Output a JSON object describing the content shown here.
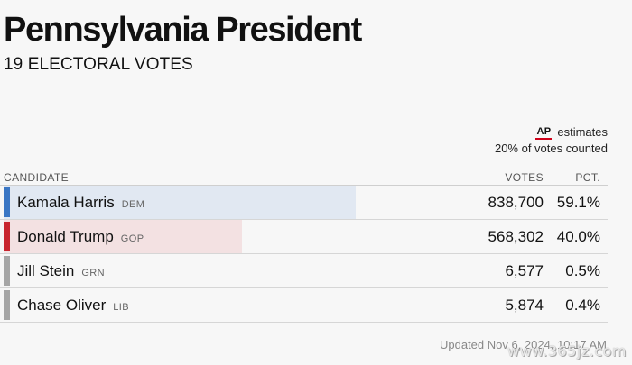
{
  "header": {
    "title": "Pennsylvania President",
    "subtitle": "19 ELECTORAL VOTES"
  },
  "source": {
    "logo": "AP",
    "estimates_label": "estimates",
    "counted_text": "20% of votes counted"
  },
  "table": {
    "col_candidate": "CANDIDATE",
    "col_votes": "VOTES",
    "col_pct": "PCT.",
    "rows": [
      {
        "name": "Kamala Harris",
        "party": "DEM",
        "votes": "838,700",
        "pct": "59.1%",
        "share": 0.591,
        "bar_color": "#3a76c4",
        "fill_color": "#e1e8f2"
      },
      {
        "name": "Donald Trump",
        "party": "GOP",
        "votes": "568,302",
        "pct": "40.0%",
        "share": 0.4,
        "bar_color": "#c8262f",
        "fill_color": "#f3e1e2"
      },
      {
        "name": "Jill Stein",
        "party": "GRN",
        "votes": "6,577",
        "pct": "0.5%",
        "share": 0.005,
        "bar_color": "#a6a6a6",
        "fill_color": "#f7f7f7"
      },
      {
        "name": "Chase Oliver",
        "party": "LIB",
        "votes": "5,874",
        "pct": "0.4%",
        "share": 0.004,
        "bar_color": "#a6a6a6",
        "fill_color": "#f7f7f7"
      }
    ]
  },
  "footer": {
    "updated": "Updated Nov 6, 2024, 10:17 AM",
    "watermark": "www.365jz.com"
  }
}
